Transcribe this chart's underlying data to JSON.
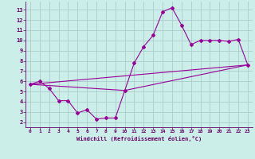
{
  "xlabel": "Windchill (Refroidissement éolien,°C)",
  "bg_color": "#cceee8",
  "grid_color": "#aacccc",
  "line_color": "#990099",
  "xlim": [
    -0.5,
    23.5
  ],
  "ylim": [
    1.5,
    13.8
  ],
  "yticks": [
    2,
    3,
    4,
    5,
    6,
    7,
    8,
    9,
    10,
    11,
    12,
    13
  ],
  "xticks": [
    0,
    1,
    2,
    3,
    4,
    5,
    6,
    7,
    8,
    9,
    10,
    11,
    12,
    13,
    14,
    15,
    16,
    17,
    18,
    19,
    20,
    21,
    22,
    23
  ],
  "line1_x": [
    0,
    1,
    2,
    3,
    4,
    5,
    6,
    7,
    8,
    9,
    10,
    11,
    12,
    13,
    14,
    15,
    16,
    17,
    18,
    19,
    20,
    21,
    22,
    23
  ],
  "line1_y": [
    5.7,
    6.0,
    5.3,
    4.1,
    4.1,
    2.9,
    3.2,
    2.3,
    2.4,
    2.4,
    5.1,
    7.8,
    9.4,
    10.5,
    12.8,
    13.2,
    11.5,
    9.6,
    10.0,
    10.0,
    10.0,
    9.9,
    10.1,
    7.6
  ],
  "line2_x": [
    0,
    23
  ],
  "line2_y": [
    5.7,
    7.6
  ],
  "line3_x": [
    0,
    10,
    23
  ],
  "line3_y": [
    5.7,
    5.1,
    7.6
  ]
}
